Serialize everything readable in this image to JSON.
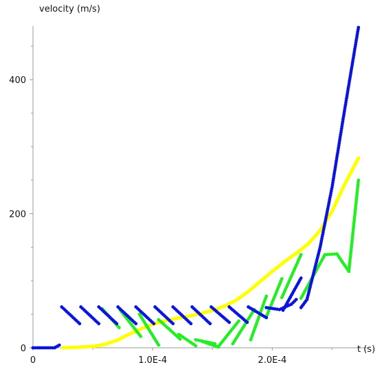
{
  "chart_data": {
    "type": "scatter",
    "title": "",
    "xlabel": "t (s)",
    "ylabel": "velocity (m/s)",
    "xlim": [
      0,
      0.000275
    ],
    "ylim": [
      0,
      480
    ],
    "grid": false,
    "x_ticks": [
      {
        "value": 0,
        "label": "0"
      },
      {
        "value": 0.0001,
        "label": "1.0E-4"
      },
      {
        "value": 0.0002,
        "label": "2.0E-4"
      }
    ],
    "y_ticks": [
      {
        "value": 0,
        "label": "0"
      },
      {
        "value": 200,
        "label": "200"
      },
      {
        "value": 400,
        "label": "400"
      }
    ],
    "series": [
      {
        "style": "line",
        "color": "#ffff00",
        "x": [
          2.5e-05,
          4e-05,
          5e-05,
          6e-05,
          7e-05,
          8e-05,
          9e-05,
          0.0001,
          0.00011,
          0.00012,
          0.00013,
          0.00014,
          0.00015,
          0.00016,
          0.00017,
          0.00018,
          0.00019,
          0.0002,
          0.00021,
          0.00022,
          0.00023,
          0.00024,
          0.00025,
          0.00026,
          0.000272
        ],
        "values": [
          0,
          1,
          2,
          5,
          11,
          20,
          28,
          35,
          40,
          44,
          47,
          51,
          56,
          62,
          71,
          84,
          99,
          114,
          128,
          141,
          155,
          175,
          204,
          242,
          283
        ]
      },
      {
        "style": "dots",
        "color": "#22ee22",
        "segments": [
          {
            "x": [
              5.8e-05,
              7.2e-05
            ],
            "values": [
              58,
              30
            ]
          },
          {
            "x": [
              7.3e-05,
              9e-05
            ],
            "values": [
              56,
              17
            ]
          },
          {
            "x": [
              8.9e-05,
              0.000105
            ],
            "values": [
              50,
              4
            ]
          },
          {
            "x": [
              0.000105,
              0.000123
            ],
            "values": [
              42,
              13
            ]
          },
          {
            "x": [
              0.000122,
              0.000136
            ],
            "values": [
              20,
              3
            ]
          },
          {
            "x": [
              0.000136,
              0.000152
            ],
            "values": [
              12,
              6
            ]
          },
          {
            "x": [
              0.000142,
              0.000155
            ],
            "values": [
              9,
              1
            ]
          },
          {
            "x": [
              0.000155,
              0.000172
            ],
            "values": [
              2,
              40
            ]
          },
          {
            "x": [
              0.000167,
              0.000185
            ],
            "values": [
              6,
              57
            ]
          },
          {
            "x": [
              0.000182,
              0.000195
            ],
            "values": [
              12,
              77
            ]
          },
          {
            "x": [
              0.000195,
              0.000208
            ],
            "values": [
              46,
              103
            ]
          },
          {
            "x": [
              0.000208,
              0.000224
            ],
            "values": [
              75,
              139
            ]
          },
          {
            "x": [
              0.000224,
              0.000244,
              0.000254,
              0.000264
            ],
            "values": [
              74,
              139,
              140,
              114
            ]
          },
          {
            "x": [
              0.000264,
              0.000272
            ],
            "values": [
              114,
              250
            ]
          }
        ]
      },
      {
        "style": "dots",
        "color": "#0a14dd",
        "segments": [
          {
            "x": [
              0,
              1.8e-05
            ],
            "values": [
              0,
              0
            ]
          },
          {
            "x": [
              1.9e-05,
              2.2e-05
            ],
            "values": [
              1,
              4
            ]
          },
          {
            "x": [
              2.4e-05,
              3.9e-05
            ],
            "values": [
              61,
              36
            ]
          },
          {
            "x": [
              4e-05,
              5.5e-05
            ],
            "values": [
              61,
              36
            ]
          },
          {
            "x": [
              5.5e-05,
              7e-05
            ],
            "values": [
              61,
              36
            ]
          },
          {
            "x": [
              7.1e-05,
              8.6e-05
            ],
            "values": [
              61,
              36
            ]
          },
          {
            "x": [
              8.6e-05,
              0.000101
            ],
            "values": [
              61,
              36
            ]
          },
          {
            "x": [
              0.000102,
              0.000117
            ],
            "values": [
              61,
              36
            ]
          },
          {
            "x": [
              0.000117,
              0.000132
            ],
            "values": [
              61,
              36
            ]
          },
          {
            "x": [
              0.000133,
              0.000148
            ],
            "values": [
              61,
              36
            ]
          },
          {
            "x": [
              0.000149,
              0.000164
            ],
            "values": [
              61,
              38
            ]
          },
          {
            "x": [
              0.000164,
              0.000179
            ],
            "values": [
              61,
              38
            ]
          },
          {
            "x": [
              0.00018,
              0.000195
            ],
            "values": [
              61,
              45
            ]
          },
          {
            "x": [
              0.000195,
              0.000206,
              0.000216,
              0.00022
            ],
            "values": [
              60,
              57,
              65,
              72
            ]
          },
          {
            "x": [
              0.000209,
              0.000224
            ],
            "values": [
              56,
              104
            ]
          },
          {
            "x": [
              0.000224,
              0.000229
            ],
            "values": [
              60,
              72
            ]
          },
          {
            "x": [
              0.000229,
              0.00024,
              0.00025,
              0.00026,
              0.000272
            ],
            "values": [
              72,
              150,
              240,
              350,
              478
            ]
          }
        ]
      }
    ]
  }
}
